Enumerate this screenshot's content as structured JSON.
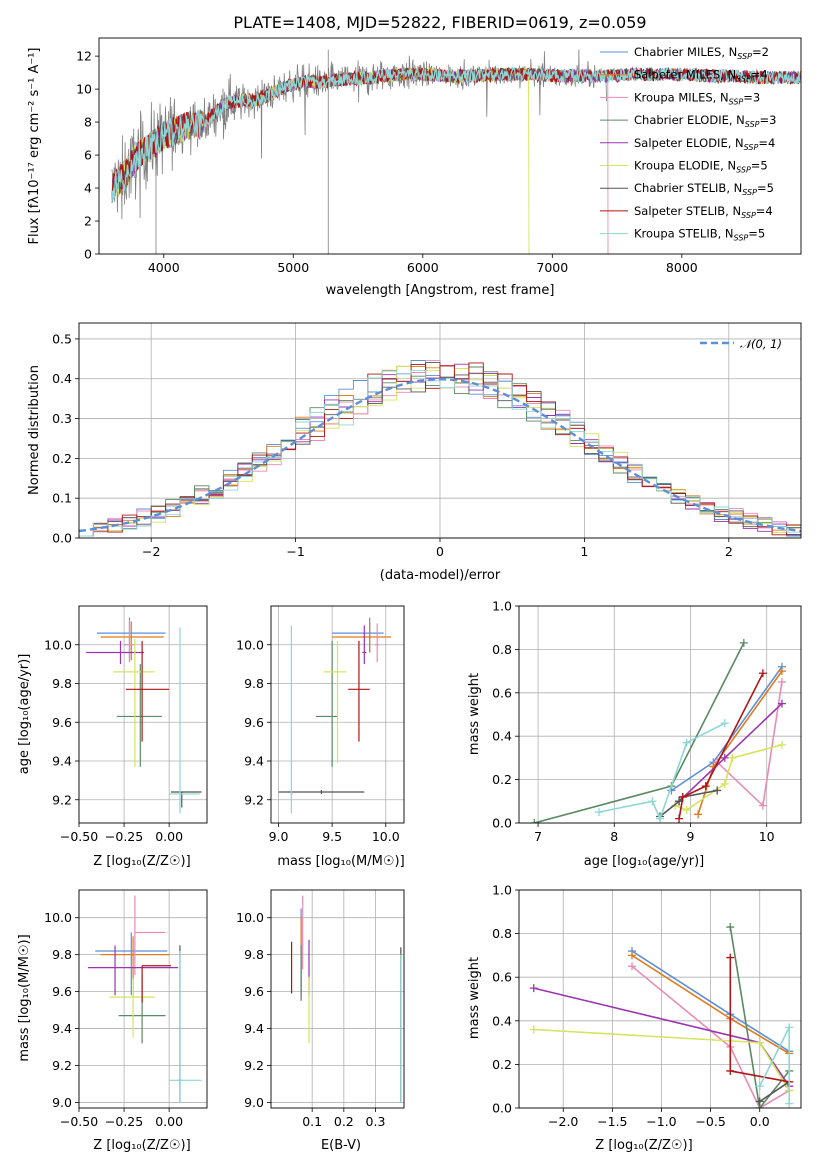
{
  "colors": {
    "Chabrier MILES": "#5b8fd8",
    "Salpeter MILES": "#e07a1f",
    "Kroupa MILES": "#e88cb4",
    "Chabrier ELODIE": "#5a8a62",
    "Salpeter ELODIE": "#9b34b0",
    "Kroupa ELODIE": "#d4e45c",
    "Chabrier STELIB": "#555555",
    "Salpeter STELIB": "#b01515",
    "Kroupa STELIB": "#8dd6d6",
    "data": "#808080",
    "normal": "#5b8fd8"
  },
  "chart_data": [
    {
      "id": "spectrum",
      "type": "line",
      "title": "PLATE=1408, MJD=52822, FIBERID=0619, z=0.059",
      "xlabel": "wavelength [Angstrom, rest frame]",
      "ylabel": "Flux [fλ10⁻¹⁷ erg cm⁻² s⁻¹ A⁻¹]",
      "xlim": [
        3500,
        8920
      ],
      "ylim": [
        0,
        13.1
      ],
      "xticks": [
        "4000",
        "5000",
        "6000",
        "7000",
        "8000"
      ],
      "yticks": [
        "0",
        "2",
        "4",
        "6",
        "8",
        "10",
        "12"
      ],
      "legend_position": "right",
      "legend": [
        {
          "name": "Chabrier MILES",
          "sub": "=2"
        },
        {
          "name": "Salpeter MILES",
          "sub": "=4"
        },
        {
          "name": "Kroupa MILES",
          "sub": "=3"
        },
        {
          "name": "Chabrier ELODIE",
          "sub": "=3"
        },
        {
          "name": "Salpeter ELODIE",
          "sub": "=4"
        },
        {
          "name": "Kroupa ELODIE",
          "sub": "=5"
        },
        {
          "name": "Chabrier STELIB",
          "sub": "=5"
        },
        {
          "name": "Salpeter STELIB",
          "sub": "=4"
        },
        {
          "name": "Kroupa STELIB",
          "sub": "=5"
        }
      ],
      "continuum": {
        "x": [
          3600,
          3700,
          3800,
          3900,
          4000,
          4100,
          4200,
          4300,
          4400,
          4500,
          4600,
          4700,
          4800,
          4900,
          5000,
          5100,
          5200,
          5400,
          5600,
          5800,
          6000,
          6200,
          6400,
          6600,
          6800,
          7000,
          7200,
          7400,
          7600,
          7800,
          8000,
          8200,
          8400,
          8600,
          8900
        ],
        "y": [
          4.0,
          4.8,
          6.0,
          6.5,
          7.2,
          7.5,
          7.8,
          7.9,
          8.6,
          9.2,
          9.3,
          9.3,
          9.6,
          10.0,
          10.3,
          10.5,
          10.4,
          10.6,
          10.7,
          10.9,
          10.9,
          10.8,
          10.8,
          10.9,
          10.9,
          10.8,
          10.8,
          10.8,
          10.9,
          10.9,
          10.9,
          10.8,
          10.8,
          10.7,
          10.7
        ]
      }
    },
    {
      "id": "residuals",
      "type": "step",
      "xlabel": "(data-model)/error",
      "ylabel": "Normed distribution",
      "xlim": [
        -2.5,
        2.5
      ],
      "ylim": [
        0,
        0.54
      ],
      "xticks": [
        "−2",
        "−1",
        "0",
        "1",
        "2"
      ],
      "yticks": [
        "0.0",
        "0.1",
        "0.2",
        "0.3",
        "0.4",
        "0.5"
      ],
      "legend_position": "top-right",
      "normal_label": "𝒩(0, 1)"
    },
    {
      "id": "age-vs-Z",
      "type": "errorbar",
      "xlabel": "Z [log₁₀(Z/Z☉)]",
      "ylabel": "age  [log₁₀(age/yr)]",
      "xlim": [
        -0.5,
        0.21
      ],
      "ylim": [
        9.08,
        10.2
      ],
      "xticks": [
        "−0.50",
        "−0.25",
        "0.00"
      ],
      "yticks": [
        "9.2",
        "9.4",
        "9.6",
        "9.8",
        "10.0"
      ],
      "points": [
        {
          "model": "Chabrier MILES",
          "x": -0.22,
          "xerr": [
            0.18,
            0.2
          ],
          "y": 10.06,
          "yerr": [
            0.14,
            0.08
          ]
        },
        {
          "model": "Salpeter MILES",
          "x": -0.21,
          "xerr": [
            0.17,
            0.18
          ],
          "y": 10.04,
          "yerr": [
            0.12,
            0.08
          ]
        },
        {
          "model": "Kroupa MILES",
          "x": -0.22,
          "xerr": [
            0.03,
            0.03
          ],
          "y": 10.0,
          "yerr": [
            0.09,
            0.13
          ]
        },
        {
          "model": "Chabrier ELODIE",
          "x": -0.16,
          "xerr": [
            0.13,
            0.12
          ],
          "y": 9.63,
          "yerr": [
            0.26,
            0.27
          ]
        },
        {
          "model": "Salpeter ELODIE",
          "x": -0.27,
          "xerr": [
            0.19,
            0.13
          ],
          "y": 9.96,
          "yerr": [
            0.06,
            0.06
          ]
        },
        {
          "model": "Kroupa ELODIE",
          "x": -0.19,
          "xerr": [
            0.12,
            0.11
          ],
          "y": 9.86,
          "yerr": [
            0.49,
            0.17
          ]
        },
        {
          "model": "Chabrier STELIB",
          "x": 0.07,
          "xerr": [
            0.06,
            0.11
          ],
          "y": 9.24,
          "yerr": [
            0.08,
            0.0
          ]
        },
        {
          "model": "Salpeter STELIB",
          "x": -0.15,
          "xerr": [
            0.09,
            0.15
          ],
          "y": 9.77,
          "yerr": [
            0.27,
            0.25
          ]
        },
        {
          "model": "Kroupa STELIB",
          "x": 0.06,
          "xerr": [
            0.06,
            0.11
          ],
          "y": 9.23,
          "yerr": [
            0.1,
            0.86
          ]
        }
      ]
    },
    {
      "id": "age-vs-mass",
      "type": "errorbar",
      "xlabel": "mass [log₁₀(M/M☉)]",
      "ylabel": "",
      "xlim": [
        8.93,
        10.17
      ],
      "ylim": [
        9.08,
        10.2
      ],
      "xticks": [
        "9.0",
        "9.5",
        "10.0"
      ],
      "yticks": [
        "9.2",
        "9.4",
        "9.6",
        "9.8",
        "10.0"
      ],
      "points": [
        {
          "model": "Chabrier MILES",
          "x": 9.85,
          "xerr": [
            0.35,
            0.13
          ],
          "y": 10.06,
          "yerr": [
            0.1,
            0.08
          ]
        },
        {
          "model": "Salpeter MILES",
          "x": 9.85,
          "xerr": [
            0.35,
            0.2
          ],
          "y": 10.04,
          "yerr": [
            0.08,
            0.08
          ]
        },
        {
          "model": "Kroupa MILES",
          "x": 9.92,
          "xerr": [
            0.02,
            0.02
          ],
          "y": 10.0,
          "yerr": [
            0.09,
            0.11
          ]
        },
        {
          "model": "Chabrier ELODIE",
          "x": 9.5,
          "xerr": [
            0.15,
            0.05
          ],
          "y": 9.63,
          "yerr": [
            0.26,
            0.39
          ]
        },
        {
          "model": "Salpeter ELODIE",
          "x": 9.8,
          "xerr": [
            0.02,
            0.02
          ],
          "y": 9.96,
          "yerr": [
            0.06,
            0.14
          ]
        },
        {
          "model": "Kroupa ELODIE",
          "x": 9.55,
          "xerr": [
            0.13,
            0.08
          ],
          "y": 9.86,
          "yerr": [
            0.47,
            0.16
          ]
        },
        {
          "model": "Chabrier STELIB",
          "x": 9.4,
          "xerr": [
            0.4,
            0.4
          ],
          "y": 9.24,
          "yerr": [
            0.01,
            0.01
          ]
        },
        {
          "model": "Salpeter STELIB",
          "x": 9.75,
          "xerr": [
            0.1,
            0.1
          ],
          "y": 9.77,
          "yerr": [
            0.27,
            0.25
          ]
        },
        {
          "model": "Kroupa STELIB",
          "x": 9.12,
          "xerr": [
            0.01,
            0.01
          ],
          "y": 9.23,
          "yerr": [
            0.1,
            0.87
          ]
        }
      ]
    },
    {
      "id": "weight-vs-age",
      "type": "line",
      "xlabel": "age  [log₁₀(age/yr)]",
      "ylabel": "mass weight",
      "xlim": [
        6.75,
        10.45
      ],
      "ylim": [
        0,
        1.0
      ],
      "xticks": [
        "7",
        "8",
        "9",
        "10"
      ],
      "yticks": [
        "0.0",
        "0.2",
        "0.4",
        "0.6",
        "0.8",
        "1.0"
      ],
      "series": [
        {
          "model": "Chabrier MILES",
          "x": [
            8.75,
            9.3,
            10.2
          ],
          "y": [
            0.15,
            0.28,
            0.72
          ]
        },
        {
          "model": "Salpeter MILES",
          "x": [
            9.1,
            9.3,
            10.2
          ],
          "y": [
            0.04,
            0.26,
            0.7
          ]
        },
        {
          "model": "Kroupa MILES",
          "x": [
            9.35,
            9.95,
            10.2
          ],
          "y": [
            0.28,
            0.08,
            0.65
          ]
        },
        {
          "model": "Chabrier ELODIE",
          "x": [
            6.95,
            8.75,
            9.7
          ],
          "y": [
            0.0,
            0.17,
            0.83
          ]
        },
        {
          "model": "Salpeter ELODIE",
          "x": [
            8.85,
            9.45,
            10.2
          ],
          "y": [
            0.1,
            0.3,
            0.55
          ]
        },
        {
          "model": "Kroupa ELODIE",
          "x": [
            8.8,
            8.95,
            9.45,
            9.55,
            10.2
          ],
          "y": [
            0.08,
            0.06,
            0.18,
            0.3,
            0.36
          ]
        },
        {
          "model": "Chabrier STELIB",
          "x": [
            8.6,
            8.85,
            8.9,
            9.35
          ],
          "y": [
            0.03,
            0.1,
            0.12,
            0.15
          ]
        },
        {
          "model": "Salpeter STELIB",
          "x": [
            8.85,
            8.9,
            9.2,
            9.95
          ],
          "y": [
            0.02,
            0.12,
            0.17,
            0.69
          ]
        },
        {
          "model": "Kroupa STELIB",
          "x": [
            7.8,
            8.5,
            8.6,
            8.95,
            9.45
          ],
          "y": [
            0.05,
            0.1,
            0.02,
            0.37,
            0.46
          ]
        }
      ]
    },
    {
      "id": "mass-vs-Z",
      "type": "errorbar",
      "xlabel": "Z [log₁₀(Z/Z☉)]",
      "ylabel": "mass [log₁₀(M/M☉)]",
      "xlim": [
        -0.5,
        0.21
      ],
      "ylim": [
        8.97,
        10.15
      ],
      "xticks": [
        "−0.50",
        "−0.25",
        "0.00"
      ],
      "yticks": [
        "9.0",
        "9.2",
        "9.4",
        "9.6",
        "9.8",
        "10.0"
      ],
      "points": [
        {
          "model": "Chabrier MILES",
          "x": -0.21,
          "xerr": [
            0.2,
            0.2
          ],
          "y": 9.82,
          "yerr": [
            0.24,
            0.1
          ]
        },
        {
          "model": "Salpeter MILES",
          "x": -0.2,
          "xerr": [
            0.18,
            0.2
          ],
          "y": 9.8,
          "yerr": [
            0.23,
            0.1
          ]
        },
        {
          "model": "Kroupa MILES",
          "x": -0.19,
          "xerr": [
            0.0,
            0.17
          ],
          "y": 9.92,
          "yerr": [
            0.23,
            0.2
          ]
        },
        {
          "model": "Chabrier ELODIE",
          "x": -0.15,
          "xerr": [
            0.13,
            0.13
          ],
          "y": 9.47,
          "yerr": [
            0.15,
            0.22
          ]
        },
        {
          "model": "Salpeter ELODIE",
          "x": -0.3,
          "xerr": [
            0.15,
            0.35
          ],
          "y": 9.73,
          "yerr": [
            0.15,
            0.12
          ]
        },
        {
          "model": "Kroupa ELODIE",
          "x": -0.2,
          "xerr": [
            0.13,
            0.12
          ],
          "y": 9.57,
          "yerr": [
            0.22,
            0.1
          ]
        },
        {
          "model": "Chabrier STELIB",
          "x": 0.06,
          "xerr": [
            0.01,
            0.01
          ],
          "y": 9.12,
          "yerr": [
            0.12,
            0.73
          ]
        },
        {
          "model": "Salpeter STELIB",
          "x": -0.15,
          "xerr": [
            0.0,
            0.16
          ],
          "y": 9.74,
          "yerr": [
            0.2,
            0.0
          ]
        },
        {
          "model": "Kroupa STELIB",
          "x": 0.06,
          "xerr": [
            0.06,
            0.12
          ],
          "y": 9.12,
          "yerr": [
            0.12,
            0.7
          ]
        }
      ]
    },
    {
      "id": "mass-vs-ebv",
      "type": "errorbar",
      "xlabel": "E(B-V)",
      "ylabel": "",
      "xlim": [
        -0.03,
        0.39
      ],
      "ylim": [
        8.97,
        10.15
      ],
      "xticks": [
        "0.1",
        "0.2",
        "0.3"
      ],
      "yticks": [
        "9.0",
        "9.2",
        "9.4",
        "9.6",
        "9.8",
        "10.0"
      ],
      "points": [
        {
          "model": "Chabrier MILES",
          "x": 0.065,
          "xerr": [
            0.0,
            0.0
          ],
          "y": 9.82,
          "yerr": [
            0.23,
            0.23
          ]
        },
        {
          "model": "Salpeter MILES",
          "x": 0.065,
          "xerr": [
            0.0,
            0.0
          ],
          "y": 9.8,
          "yerr": [
            0.23,
            0.2
          ]
        },
        {
          "model": "Kroupa MILES",
          "x": 0.07,
          "xerr": [
            0.0,
            0.0
          ],
          "y": 9.92,
          "yerr": [
            0.2,
            0.2
          ]
        },
        {
          "model": "Chabrier ELODIE",
          "x": 0.065,
          "xerr": [
            0.0,
            0.0
          ],
          "y": 9.7,
          "yerr": [
            0.15,
            0.15
          ]
        },
        {
          "model": "Salpeter ELODIE",
          "x": 0.09,
          "xerr": [
            0.0,
            0.0
          ],
          "y": 9.73,
          "yerr": [
            0.15,
            0.15
          ]
        },
        {
          "model": "Kroupa ELODIE",
          "x": 0.09,
          "xerr": [
            0.0,
            0.0
          ],
          "y": 9.5,
          "yerr": [
            0.18,
            0.18
          ]
        },
        {
          "model": "Chabrier STELIB",
          "x": 0.38,
          "xerr": [
            0.0,
            0.0
          ],
          "y": 9.42,
          "yerr": [
            0.42,
            0.42
          ]
        },
        {
          "model": "Salpeter STELIB",
          "x": 0.035,
          "xerr": [
            0.0,
            0.0
          ],
          "y": 9.73,
          "yerr": [
            0.14,
            0.14
          ]
        },
        {
          "model": "Kroupa STELIB",
          "x": 0.38,
          "xerr": [
            0.0,
            0.0
          ],
          "y": 9.4,
          "yerr": [
            0.4,
            0.4
          ]
        }
      ]
    },
    {
      "id": "weight-vs-Z",
      "type": "line",
      "xlabel": "Z [log₁₀(Z/Z☉)]",
      "ylabel": "mass weight",
      "xlim": [
        -2.45,
        0.42
      ],
      "ylim": [
        0,
        1.0
      ],
      "xticks": [
        "−2.0",
        "−1.5",
        "−1.0",
        "−0.5",
        "0.0"
      ],
      "yticks": [
        "0.0",
        "0.2",
        "0.4",
        "0.6",
        "0.8",
        "1.0"
      ],
      "series": [
        {
          "model": "Chabrier MILES",
          "x": [
            -1.3,
            -0.3,
            0.3
          ],
          "y": [
            0.72,
            0.43,
            0.26
          ]
        },
        {
          "model": "Salpeter MILES",
          "x": [
            -1.3,
            -0.3,
            0.3
          ],
          "y": [
            0.7,
            0.41,
            0.25
          ]
        },
        {
          "model": "Kroupa MILES",
          "x": [
            -1.3,
            -0.3,
            0.0,
            0.3
          ],
          "y": [
            0.65,
            0.28,
            0.0,
            0.08
          ]
        },
        {
          "model": "Chabrier ELODIE",
          "x": [
            -0.3,
            0.0,
            0.3
          ],
          "y": [
            0.83,
            0.0,
            0.17
          ]
        },
        {
          "model": "Salpeter ELODIE",
          "x": [
            -2.3,
            0.0,
            0.3
          ],
          "y": [
            0.55,
            0.3,
            0.1
          ]
        },
        {
          "model": "Kroupa ELODIE",
          "x": [
            -2.3,
            0.0,
            0.3
          ],
          "y": [
            0.36,
            0.3,
            0.08
          ]
        },
        {
          "model": "Chabrier STELIB",
          "x": [
            0.0,
            0.3
          ],
          "y": [
            0.03,
            0.12
          ]
        },
        {
          "model": "Salpeter STELIB",
          "x": [
            -0.3,
            -0.3,
            0.3
          ],
          "y": [
            0.69,
            0.17,
            0.12
          ]
        },
        {
          "model": "Kroupa STELIB",
          "x": [
            0.0,
            0.3,
            0.3
          ],
          "y": [
            0.1,
            0.37,
            0.02
          ]
        }
      ]
    }
  ]
}
